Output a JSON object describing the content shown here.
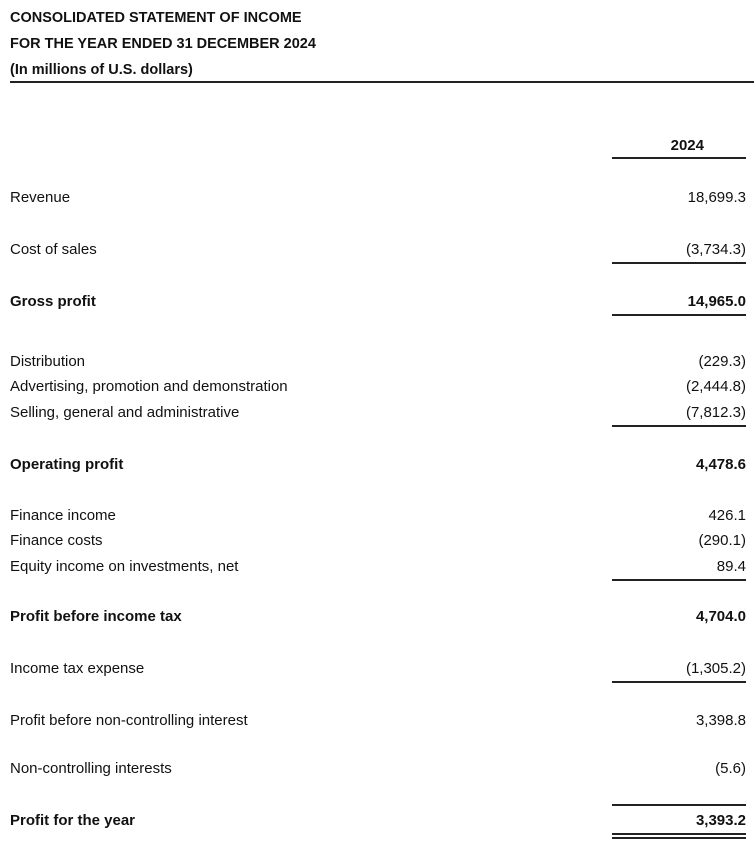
{
  "header": {
    "title": "CONSOLIDATED STATEMENT OF INCOME",
    "period": "FOR THE YEAR ENDED 31 DECEMBER 2024",
    "units": "(In millions of U.S. dollars)",
    "column": "2024"
  },
  "rows": [
    {
      "label": "Revenue",
      "value": "18,699.3"
    },
    {
      "label": "Cost of sales",
      "value": "(3,734.3)"
    },
    {
      "label": "Gross profit",
      "value": "14,965.0"
    },
    {
      "label": "Distribution",
      "value": "(229.3)"
    },
    {
      "label": "Advertising, promotion and demonstration",
      "value": "(2,444.8)"
    },
    {
      "label": "Selling, general and administrative",
      "value": "(7,812.3)"
    },
    {
      "label": "Operating profit",
      "value": "4,478.6"
    },
    {
      "label": "Finance income",
      "value": "426.1"
    },
    {
      "label": "Finance costs",
      "value": "(290.1)"
    },
    {
      "label": "Equity income on investments, net",
      "value": "89.4"
    },
    {
      "label": "Profit before income tax",
      "value": "4,704.0"
    },
    {
      "label": "Income tax expense",
      "value": "(1,305.2)"
    },
    {
      "label": "Profit before non-controlling interest",
      "value": "3,398.8"
    },
    {
      "label": "Non-controlling interests",
      "value": "(5.6)"
    },
    {
      "label": "Profit for the year",
      "value": "3,393.2"
    }
  ]
}
